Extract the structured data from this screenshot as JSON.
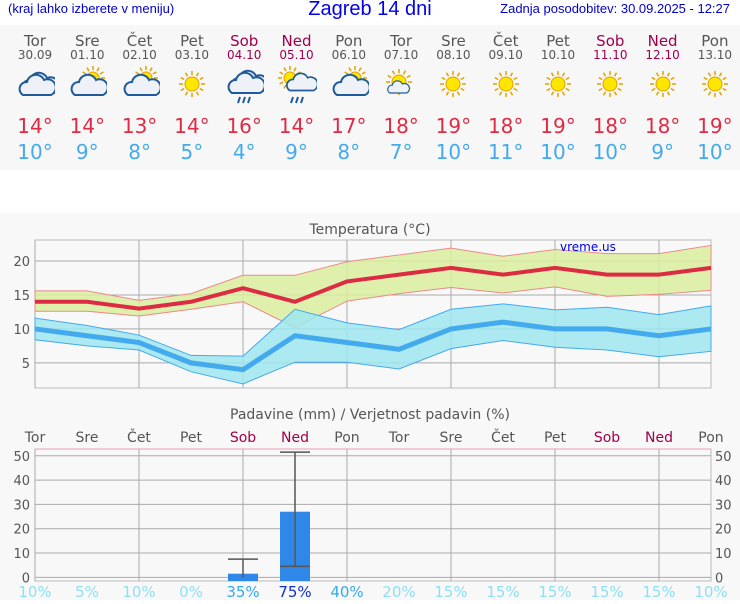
{
  "header": {
    "hint": "(kraj lahko izberete v meniju)",
    "title": "Zagreb 14 dni",
    "updated": "Zadnja posodobitev: 30.09.2025 - 12:27"
  },
  "days": [
    {
      "name": "Tor",
      "date": "30.09",
      "icon": "cloudy-icon",
      "max": "14°",
      "min": "10°",
      "weekend": false
    },
    {
      "name": "Sre",
      "date": "01.10",
      "icon": "partly-cloudy-icon",
      "max": "14°",
      "min": "9°",
      "weekend": false
    },
    {
      "name": "Čet",
      "date": "02.10",
      "icon": "partly-cloudy-icon",
      "max": "13°",
      "min": "8°",
      "weekend": false
    },
    {
      "name": "Pet",
      "date": "03.10",
      "icon": "sun-icon",
      "max": "14°",
      "min": "5°",
      "weekend": false
    },
    {
      "name": "Sob",
      "date": "04.10",
      "icon": "cloud-rain-icon",
      "max": "16°",
      "min": "4°",
      "weekend": true
    },
    {
      "name": "Ned",
      "date": "05.10",
      "icon": "sun-cloud-rain-icon",
      "max": "14°",
      "min": "9°",
      "weekend": true
    },
    {
      "name": "Pon",
      "date": "06.10",
      "icon": "partly-cloudy-icon",
      "max": "17°",
      "min": "8°",
      "weekend": false
    },
    {
      "name": "Tor",
      "date": "07.10",
      "icon": "sun-small-cloud-icon",
      "max": "18°",
      "min": "7°",
      "weekend": false
    },
    {
      "name": "Sre",
      "date": "08.10",
      "icon": "sun-icon",
      "max": "19°",
      "min": "10°",
      "weekend": false
    },
    {
      "name": "Čet",
      "date": "09.10",
      "icon": "sun-icon",
      "max": "18°",
      "min": "11°",
      "weekend": false
    },
    {
      "name": "Pet",
      "date": "10.10",
      "icon": "sun-icon",
      "max": "19°",
      "min": "10°",
      "weekend": false
    },
    {
      "name": "Sob",
      "date": "11.10",
      "icon": "sun-icon",
      "max": "18°",
      "min": "10°",
      "weekend": true
    },
    {
      "name": "Ned",
      "date": "12.10",
      "icon": "sun-icon",
      "max": "18°",
      "min": "9°",
      "weekend": true
    },
    {
      "name": "Pon",
      "date": "13.10",
      "icon": "sun-icon",
      "max": "19°",
      "min": "10°",
      "weekend": false
    }
  ],
  "colors": {
    "max": "#dd2b44",
    "min": "#44aaee",
    "max_band": "#d9ef9f",
    "min_band": "#9fe6f0",
    "bar": "#2f88e8",
    "weekend": "#a0004a"
  },
  "chart_data": [
    {
      "type": "line",
      "title": "Temperatura (°C)",
      "watermark": "vreme.us",
      "ylim": [
        1.3,
        23.1
      ],
      "yticks": [
        5,
        10,
        15,
        20
      ],
      "grid": true,
      "x": [
        "Tor",
        "Sre",
        "Čet",
        "Pet",
        "Sob",
        "Ned",
        "Pon",
        "Tor",
        "Sre",
        "Čet",
        "Pet",
        "Sob",
        "Ned",
        "Pon"
      ],
      "series": [
        {
          "role": "max",
          "values": [
            14,
            14,
            13,
            14,
            16,
            14,
            17,
            18,
            19,
            18,
            19,
            18,
            18,
            19
          ],
          "band_upper": [
            15.6,
            15.6,
            14.2,
            15.2,
            17.9,
            17.9,
            19.9,
            20.9,
            21.9,
            20.7,
            21.7,
            21.1,
            21.1,
            22.3
          ],
          "band_lower": [
            12.6,
            12.6,
            11.9,
            12.9,
            14,
            10.2,
            14.1,
            15.2,
            16.1,
            15.3,
            16.2,
            14.8,
            15.1,
            15.7
          ]
        },
        {
          "role": "min",
          "values": [
            10,
            9,
            8,
            5,
            4,
            9,
            8,
            7,
            10,
            11,
            10,
            10,
            9,
            10
          ],
          "band_upper": [
            11.6,
            10.5,
            9.1,
            6.1,
            6.0,
            12.9,
            10.9,
            9.9,
            12.9,
            13.7,
            12.8,
            13.2,
            12.1,
            13.4
          ],
          "band_lower": [
            8.4,
            7.5,
            6.9,
            3.7,
            1.9,
            5.1,
            5.1,
            4.1,
            7.1,
            8.3,
            7.3,
            6.9,
            5.9,
            6.7
          ]
        }
      ]
    },
    {
      "type": "bar",
      "title": "Padavine (mm) / Verjetnost padavin (%)",
      "ylim": [
        -1.5,
        52.8
      ],
      "yticks": [
        0,
        10,
        20,
        30,
        40,
        50
      ],
      "grid": true,
      "categories": [
        "Tor",
        "Sre",
        "Čet",
        "Pet",
        "Sob",
        "Ned",
        "Pon",
        "Tor",
        "Sre",
        "Čet",
        "Pet",
        "Sob",
        "Ned",
        "Pon"
      ],
      "values": [
        0,
        0,
        0,
        0,
        1.5,
        27,
        0,
        0,
        0,
        0,
        0,
        0,
        0,
        0
      ],
      "error_low": [
        null,
        null,
        null,
        null,
        0,
        4.5,
        null,
        null,
        null,
        null,
        null,
        null,
        null,
        null
      ],
      "error_high": [
        null,
        null,
        null,
        null,
        7.5,
        51.5,
        null,
        null,
        null,
        null,
        null,
        null,
        null,
        null
      ],
      "probability": [
        "10%",
        "5%",
        "10%",
        "0%",
        "35%",
        "75%",
        "40%",
        "20%",
        "15%",
        "15%",
        "15%",
        "15%",
        "15%",
        "10%"
      ]
    }
  ]
}
